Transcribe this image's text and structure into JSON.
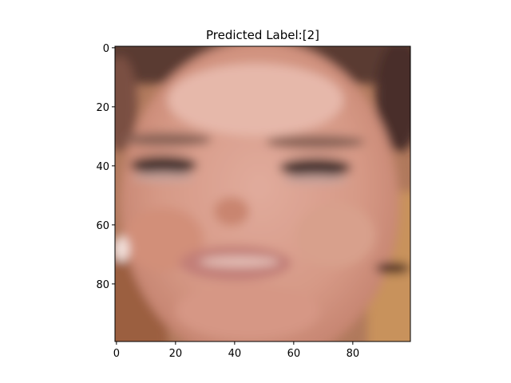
{
  "figure": {
    "title": "Predicted Label:[2]"
  },
  "image": {
    "description_free": true,
    "x_range": [
      0,
      99
    ],
    "y_range": [
      0,
      99
    ],
    "x_ticks": [
      0,
      20,
      40,
      60,
      80
    ],
    "y_ticks": [
      0,
      20,
      40,
      60,
      80
    ],
    "x_tick_labels": [
      "0",
      "20",
      "40",
      "60",
      "80"
    ],
    "y_tick_labels": [
      "0",
      "20",
      "40",
      "60",
      "80"
    ]
  },
  "colors": {
    "skin": "#d79a86",
    "skin_light": "#e3b2a3",
    "skin_shadow": "#c07e6c",
    "hair": "#5a3a33",
    "hair_dark": "#3e2520",
    "eyes": "#4a3630",
    "lips": "#c48780",
    "teeth": "#e7c2ba",
    "background_left": "#a36748",
    "background_right": "#c38a55",
    "highlight": "#f0d8d0"
  }
}
